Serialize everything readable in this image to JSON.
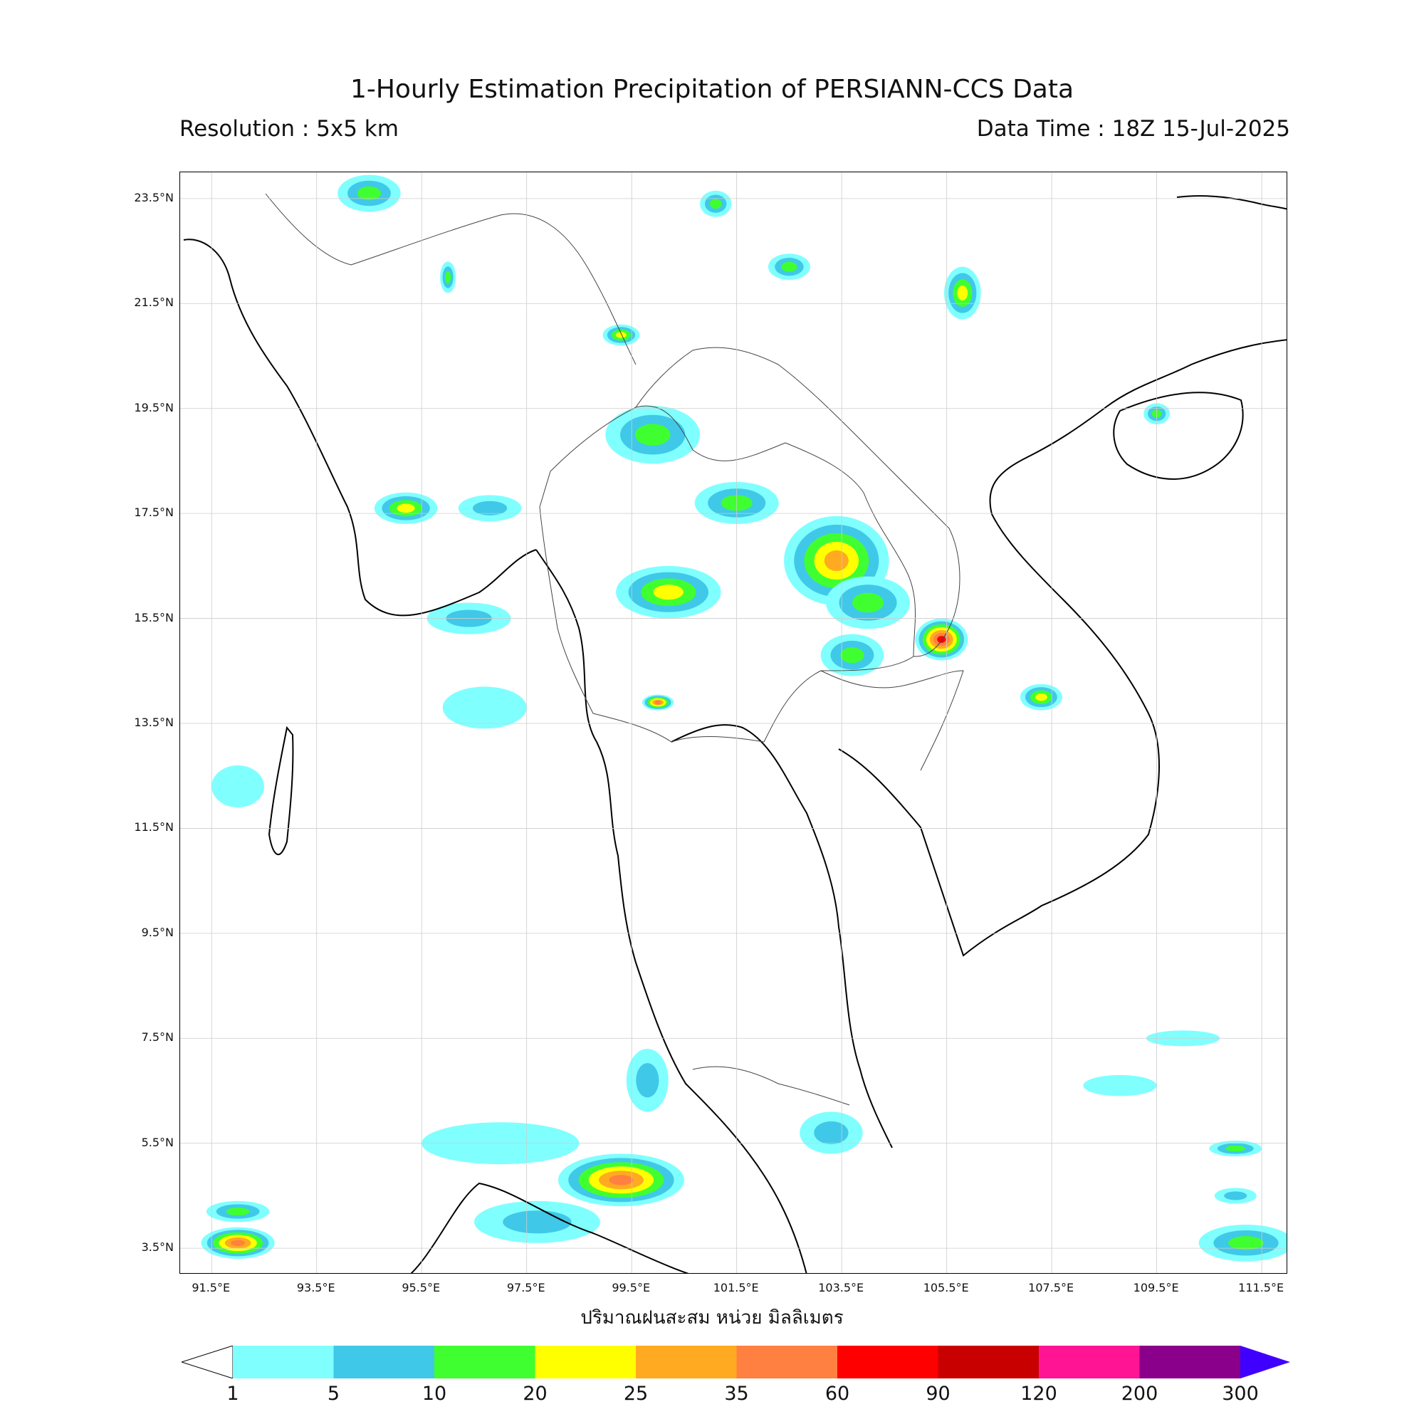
{
  "header": {
    "title": "1-Hourly Estimation Precipitation of PERSIANN-CCS Data",
    "resolution": "Resolution : 5x5 km",
    "data_time": "Data Time : 18Z 15-Jul-2025"
  },
  "axes": {
    "lat_labels": [
      "23.5°N",
      "21.5°N",
      "19.5°N",
      "17.5°N",
      "15.5°N",
      "13.5°N",
      "11.5°N",
      "9.5°N",
      "7.5°N",
      "5.5°N",
      "3.5°N"
    ],
    "lon_labels": [
      "91.5°E",
      "93.5°E",
      "95.5°E",
      "97.5°E",
      "99.5°E",
      "101.5°E",
      "103.5°E",
      "105.5°E",
      "107.5°E",
      "109.5°E",
      "111.5°E"
    ],
    "lat_values": [
      23.5,
      21.5,
      19.5,
      17.5,
      15.5,
      13.5,
      11.5,
      9.5,
      7.5,
      5.5,
      3.5
    ],
    "lon_values": [
      91.5,
      93.5,
      95.5,
      97.5,
      99.5,
      101.5,
      103.5,
      105.5,
      107.5,
      109.5,
      111.5
    ],
    "lat_range": [
      3.0,
      24.0
    ],
    "lon_range": [
      90.9,
      112.0
    ],
    "xlabel": "ปริมาณฝนสะสม หน่วย มิลลิเมตร",
    "grid": true
  },
  "colorbar": {
    "ticks": [
      "1",
      "5",
      "10",
      "20",
      "25",
      "35",
      "60",
      "90",
      "120",
      "200",
      "300"
    ],
    "colors": [
      "#80ffff",
      "#40c8e8",
      "#40ff30",
      "#ffff00",
      "#ffaa20",
      "#ff8040",
      "#ff0000",
      "#c80000",
      "#ff1493",
      "#8b008b"
    ],
    "over_color": "#4000ff",
    "under_color": "#ffffff"
  },
  "precip": [
    {
      "lon": 94.5,
      "lat": 23.6,
      "rx": 0.6,
      "ry": 0.35,
      "level": 2
    },
    {
      "lon": 99.3,
      "lat": 20.9,
      "rx": 0.35,
      "ry": 0.2,
      "level": 3
    },
    {
      "lon": 99.9,
      "lat": 19.0,
      "rx": 0.9,
      "ry": 0.55,
      "level": 2
    },
    {
      "lon": 95.2,
      "lat": 17.6,
      "rx": 0.6,
      "ry": 0.3,
      "level": 3
    },
    {
      "lon": 96.8,
      "lat": 17.6,
      "rx": 0.6,
      "ry": 0.25,
      "level": 1
    },
    {
      "lon": 100.2,
      "lat": 16.0,
      "rx": 1.0,
      "ry": 0.5,
      "level": 3
    },
    {
      "lon": 101.5,
      "lat": 17.7,
      "rx": 0.8,
      "ry": 0.4,
      "level": 2
    },
    {
      "lon": 103.4,
      "lat": 16.6,
      "rx": 1.0,
      "ry": 0.85,
      "level": 4
    },
    {
      "lon": 104.0,
      "lat": 15.8,
      "rx": 0.8,
      "ry": 0.5,
      "level": 2
    },
    {
      "lon": 105.4,
      "lat": 15.1,
      "rx": 0.5,
      "ry": 0.4,
      "level": 6
    },
    {
      "lon": 103.7,
      "lat": 14.8,
      "rx": 0.6,
      "ry": 0.4,
      "level": 2
    },
    {
      "lon": 105.8,
      "lat": 21.7,
      "rx": 0.35,
      "ry": 0.5,
      "level": 3
    },
    {
      "lon": 102.5,
      "lat": 22.2,
      "rx": 0.4,
      "ry": 0.25,
      "level": 2
    },
    {
      "lon": 107.3,
      "lat": 14.0,
      "rx": 0.4,
      "ry": 0.25,
      "level": 3
    },
    {
      "lon": 100.0,
      "lat": 13.9,
      "rx": 0.3,
      "ry": 0.15,
      "level": 5
    },
    {
      "lon": 99.3,
      "lat": 4.8,
      "rx": 1.2,
      "ry": 0.5,
      "level": 5
    },
    {
      "lon": 97.7,
      "lat": 4.0,
      "rx": 1.2,
      "ry": 0.4,
      "level": 1
    },
    {
      "lon": 97.0,
      "lat": 5.5,
      "rx": 1.5,
      "ry": 0.4,
      "level": 0
    },
    {
      "lon": 99.8,
      "lat": 6.7,
      "rx": 0.4,
      "ry": 0.6,
      "level": 1
    },
    {
      "lon": 103.3,
      "lat": 5.7,
      "rx": 0.6,
      "ry": 0.4,
      "level": 1
    },
    {
      "lon": 92.0,
      "lat": 3.6,
      "rx": 0.7,
      "ry": 0.3,
      "level": 5
    },
    {
      "lon": 92.0,
      "lat": 4.2,
      "rx": 0.6,
      "ry": 0.2,
      "level": 2
    },
    {
      "lon": 111.2,
      "lat": 3.6,
      "rx": 0.9,
      "ry": 0.35,
      "level": 2
    },
    {
      "lon": 111.0,
      "lat": 4.5,
      "rx": 0.4,
      "ry": 0.15,
      "level": 1
    },
    {
      "lon": 111.0,
      "lat": 5.4,
      "rx": 0.5,
      "ry": 0.15,
      "level": 2
    },
    {
      "lon": 92.0,
      "lat": 12.3,
      "rx": 0.5,
      "ry": 0.4,
      "level": 0
    },
    {
      "lon": 96.7,
      "lat": 13.8,
      "rx": 0.8,
      "ry": 0.4,
      "level": 0
    },
    {
      "lon": 96.4,
      "lat": 15.5,
      "rx": 0.8,
      "ry": 0.3,
      "level": 1
    },
    {
      "lon": 108.8,
      "lat": 6.6,
      "rx": 0.7,
      "ry": 0.2,
      "level": 0
    },
    {
      "lon": 110.0,
      "lat": 7.5,
      "rx": 0.7,
      "ry": 0.15,
      "level": 0
    },
    {
      "lon": 109.5,
      "lat": 19.4,
      "rx": 0.25,
      "ry": 0.2,
      "level": 2
    },
    {
      "lon": 96.0,
      "lat": 22.0,
      "rx": 0.15,
      "ry": 0.3,
      "level": 2
    },
    {
      "lon": 101.1,
      "lat": 23.4,
      "rx": 0.3,
      "ry": 0.25,
      "level": 2
    }
  ]
}
